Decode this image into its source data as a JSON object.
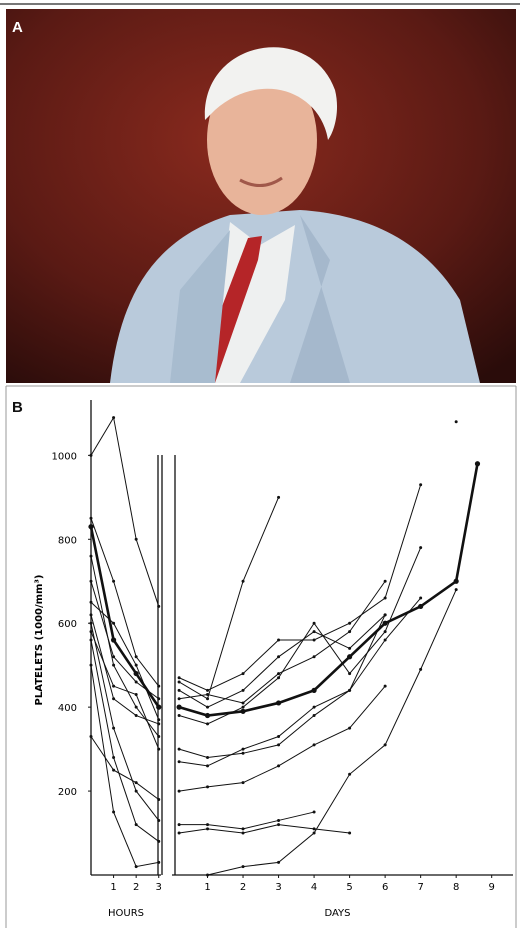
{
  "panels": {
    "a": "A",
    "b": "B"
  },
  "chart_data": [
    {
      "type": "line",
      "ylabel": "PLATELETS (1000/mm³)",
      "xlabel": "HOURS",
      "x": [
        0,
        1,
        2,
        3
      ],
      "xlim": [
        0,
        3.1
      ],
      "xticks": [
        1,
        2,
        3
      ],
      "ylim": [
        0,
        1120
      ],
      "yticks": [
        200,
        400,
        600,
        800,
        1000
      ],
      "series": [
        {
          "color": "#111111",
          "values": [
            1000,
            1090,
            800,
            640
          ]
        },
        {
          "color": "#111111",
          "width": 2.6,
          "values": [
            830,
            560,
            480,
            400
          ]
        },
        {
          "color": "#111111",
          "values": [
            700,
            520,
            460,
            420
          ]
        },
        {
          "color": "#111111",
          "values": [
            650,
            600,
            500,
            370
          ]
        },
        {
          "color": "#111111",
          "values": [
            600,
            350,
            200,
            130
          ]
        },
        {
          "color": "#111111",
          "values": [
            560,
            280,
            120,
            80
          ]
        },
        {
          "color": "#111111",
          "values": [
            500,
            150,
            20,
            30
          ]
        },
        {
          "color": "#111111",
          "values": [
            330,
            250,
            220,
            180
          ]
        },
        {
          "color": "#111111",
          "values": [
            760,
            500,
            400,
            330
          ]
        },
        {
          "color": "#111111",
          "values": [
            620,
            420,
            380,
            360
          ]
        },
        {
          "color": "#111111",
          "values": [
            850,
            700,
            520,
            450
          ]
        },
        {
          "color": "#111111",
          "values": [
            580,
            450,
            430,
            300
          ]
        }
      ]
    },
    {
      "type": "line",
      "xlabel": "DAYS",
      "x": [
        0.2,
        1,
        2,
        3,
        4,
        5,
        6,
        7,
        8,
        8.6
      ],
      "xlim": [
        0,
        9.6
      ],
      "xticks": [
        1,
        2,
        3,
        4,
        5,
        6,
        7,
        8,
        9
      ],
      "ylim": [
        0,
        1120
      ],
      "series": [
        {
          "color": "#111111",
          "width": 2.6,
          "values": [
            400,
            380,
            390,
            410,
            440,
            520,
            600,
            640,
            700,
            980
          ]
        },
        {
          "color": "#111111",
          "values": [
            460,
            420,
            700,
            900,
            null,
            null,
            null,
            null,
            null,
            null
          ]
        },
        {
          "color": "#111111",
          "values": [
            470,
            440,
            480,
            560,
            560,
            600,
            660,
            930,
            null,
            null
          ]
        },
        {
          "color": "#111111",
          "values": [
            300,
            280,
            290,
            310,
            380,
            440,
            620,
            null,
            1080,
            null
          ]
        },
        {
          "color": "#111111",
          "values": [
            200,
            210,
            220,
            260,
            310,
            350,
            450,
            null,
            null,
            null
          ]
        },
        {
          "color": "#111111",
          "values": [
            120,
            120,
            110,
            130,
            150,
            null,
            null,
            null,
            null,
            null
          ]
        },
        {
          "color": "#111111",
          "values": [
            100,
            110,
            100,
            120,
            110,
            100,
            null,
            null,
            null,
            null
          ]
        },
        {
          "color": "#111111",
          "values": [
            null,
            0,
            20,
            30,
            100,
            240,
            310,
            490,
            680,
            null
          ]
        },
        {
          "color": "#111111",
          "values": [
            420,
            430,
            410,
            480,
            520,
            580,
            700,
            null,
            null,
            null
          ]
        },
        {
          "color": "#111111",
          "values": [
            380,
            360,
            400,
            470,
            600,
            480,
            580,
            780,
            null,
            null
          ]
        },
        {
          "color": "#111111",
          "values": [
            440,
            400,
            440,
            520,
            580,
            540,
            620,
            null,
            null,
            null
          ]
        },
        {
          "color": "#111111",
          "values": [
            270,
            260,
            300,
            330,
            400,
            440,
            560,
            660,
            null,
            null
          ]
        }
      ]
    }
  ]
}
